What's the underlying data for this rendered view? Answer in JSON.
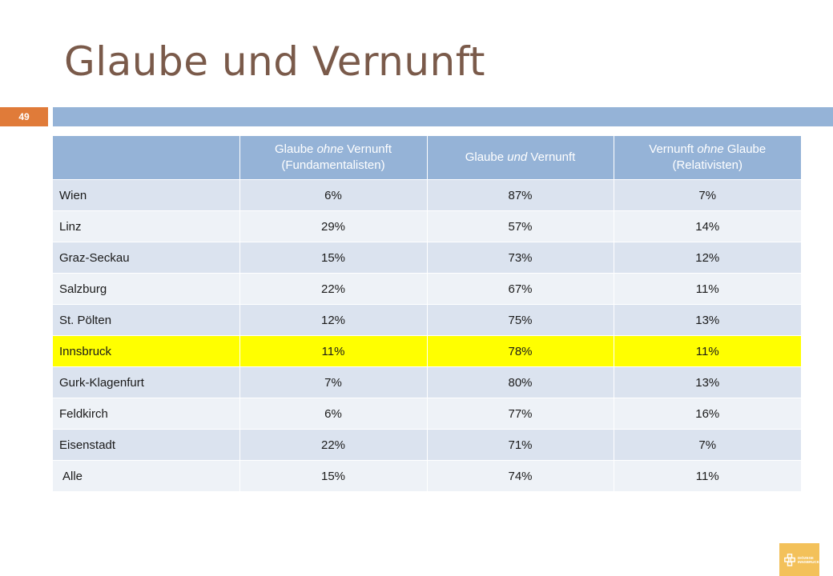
{
  "slide": {
    "title": "Glaube und Vernunft",
    "number": "49"
  },
  "colors": {
    "title": "#7a5a4a",
    "accent_bar": "#95b3d7",
    "slide_number_bg": "#e07b39",
    "highlight_row": "#ffff00"
  },
  "table": {
    "headers": [
      {
        "parts": []
      },
      {
        "parts": [
          {
            "text": "Glaube ",
            "italic": false
          },
          {
            "text": "ohne",
            "italic": true
          },
          {
            "text": " Vernunft",
            "italic": false
          },
          {
            "text": "(Fundamentalisten)",
            "italic": false,
            "break_before": true
          }
        ]
      },
      {
        "parts": [
          {
            "text": "Glaube ",
            "italic": false
          },
          {
            "text": "und",
            "italic": true
          },
          {
            "text": " Vernunft",
            "italic": false
          }
        ]
      },
      {
        "parts": [
          {
            "text": "Vernunft ",
            "italic": false
          },
          {
            "text": "ohne",
            "italic": true
          },
          {
            "text": " Glaube",
            "italic": false
          },
          {
            "text": "(Relativisten)",
            "italic": false,
            "break_before": true
          }
        ]
      }
    ],
    "rows": [
      {
        "region": "Wien",
        "values": [
          "6%",
          "87%",
          "7%"
        ]
      },
      {
        "region": "Linz",
        "values": [
          "29%",
          "57%",
          "14%"
        ]
      },
      {
        "region": "Graz-Seckau",
        "values": [
          "15%",
          "73%",
          "12%"
        ]
      },
      {
        "region": "Salzburg",
        "values": [
          "22%",
          "67%",
          "11%"
        ]
      },
      {
        "region": "St. Pölten",
        "values": [
          "12%",
          "75%",
          "13%"
        ]
      },
      {
        "region": "Innsbruck",
        "values": [
          "11%",
          "78%",
          "11%"
        ],
        "highlight": true
      },
      {
        "region": "Gurk-Klagenfurt",
        "values": [
          "7%",
          "80%",
          "13%"
        ]
      },
      {
        "region": "Feldkirch",
        "values": [
          "6%",
          "77%",
          "16%"
        ]
      },
      {
        "region": "Eisenstadt",
        "values": [
          "22%",
          "71%",
          "7%"
        ]
      },
      {
        "region": "Alle",
        "values": [
          "15%",
          "74%",
          "11%"
        ],
        "total": true
      }
    ]
  },
  "logo": {
    "icon": "diocese-cross-icon",
    "line1": "DIÖZESE",
    "line2": "INNSBRUCK"
  }
}
